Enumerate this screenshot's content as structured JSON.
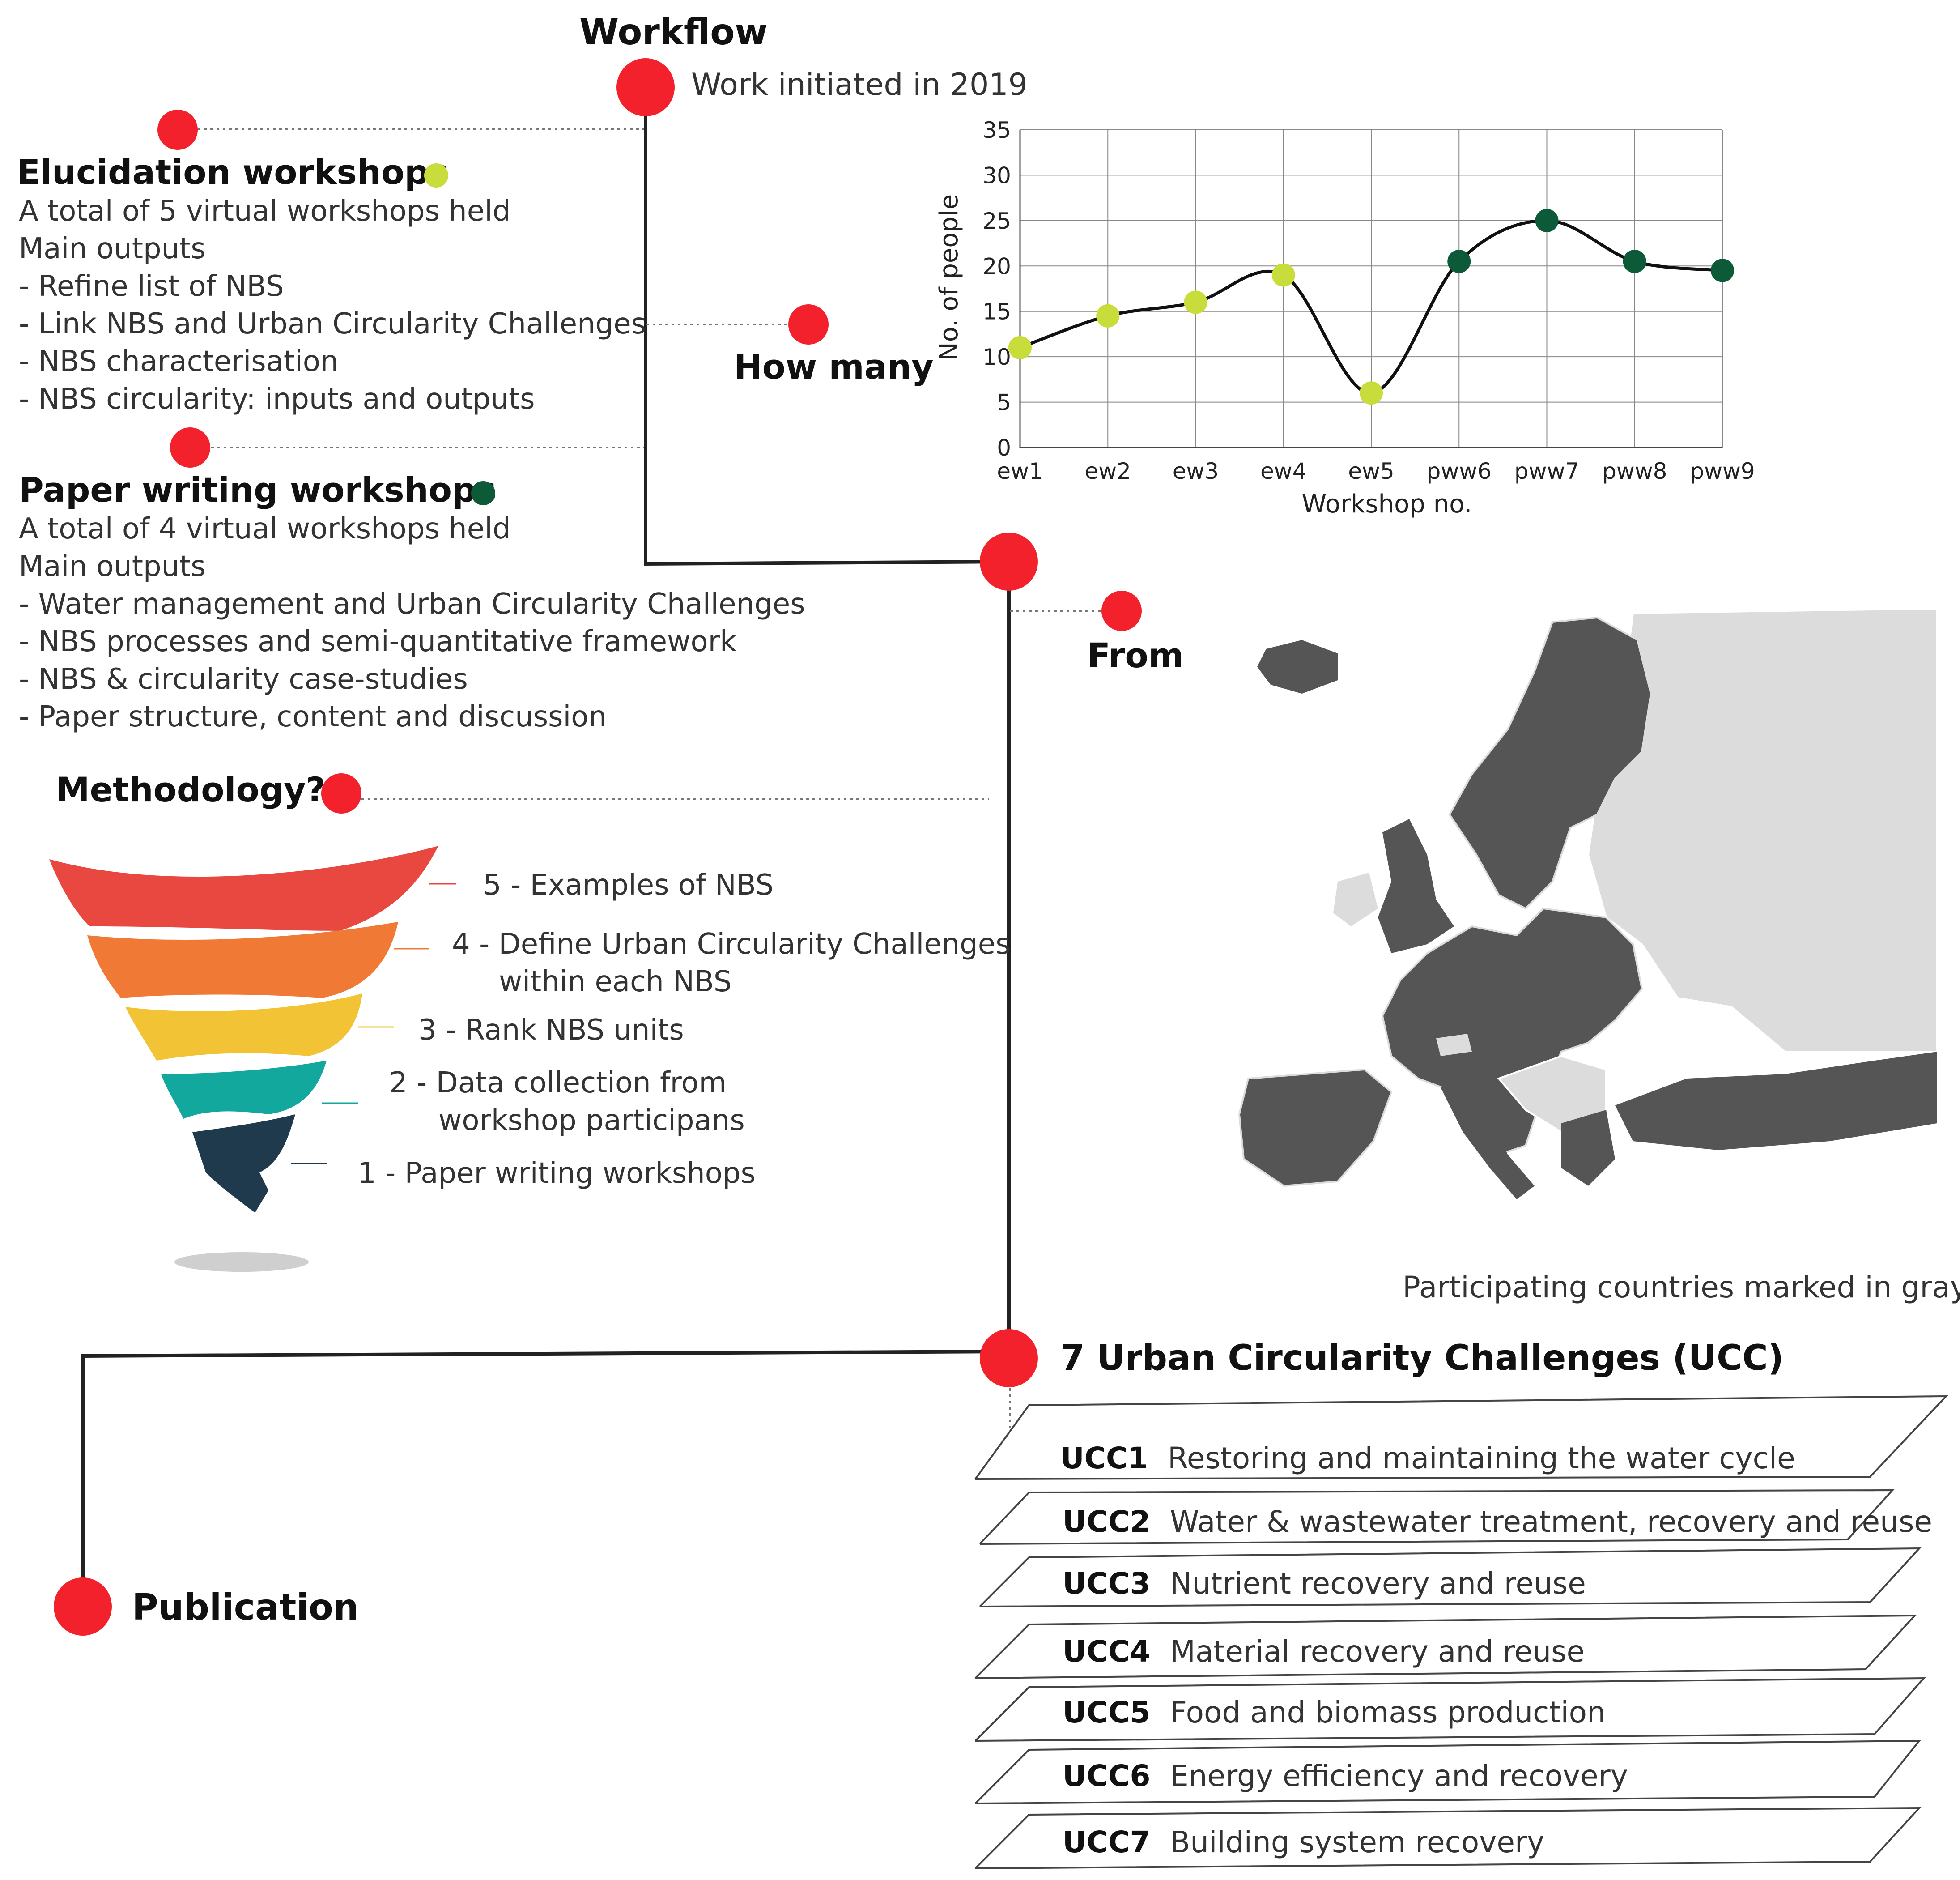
{
  "workflow": {
    "title": "Workflow",
    "start_text": "Work initiated in 2019"
  },
  "elucidation": {
    "title": "Elucidation workshops",
    "dot_color": "#c8dd3c",
    "line1": "A total of 5 virtual workshops held",
    "line2": "Main outputs",
    "outputs": [
      "- Refine list of NBS",
      "- Link NBS and Urban Circularity Challenges",
      "- NBS characterisation",
      "- NBS circularity: inputs and outputs"
    ]
  },
  "paper_writing": {
    "title": "Paper writing workshops",
    "dot_color": "#0c5a38",
    "line1": "A total of 4 virtual workshops held",
    "line2": "Main outputs",
    "outputs": [
      "- Water management and Urban Circularity Challenges",
      "- NBS processes and semi-quantitative framework",
      "- NBS & circularity case-studies",
      "- Paper structure, content and discussion"
    ]
  },
  "how_many": {
    "label": "How many"
  },
  "from": {
    "label": "From",
    "map_caption": "Participating countries marked in gray"
  },
  "methodology": {
    "title": "Methodology?",
    "steps": [
      "5 - Examples of NBS",
      "4 - Define Urban Circularity Challenges",
      "within each NBS",
      "3 - Rank NBS units",
      "2 - Data collection from",
      "workshop participans",
      "1 - Paper writing  workshops"
    ],
    "layer_colors": [
      "#e8483f",
      "#f07a35",
      "#f2c335",
      "#13a89e",
      "#1e3a4c"
    ]
  },
  "ucc": {
    "title": "7 Urban Circularity Challenges (UCC)",
    "items": [
      {
        "code": "UCC1",
        "text": "Restoring and maintaining the water cycle"
      },
      {
        "code": "UCC2",
        "text": "Water & wastewater treatment, recovery and reuse"
      },
      {
        "code": "UCC3",
        "text": "Nutrient recovery and reuse"
      },
      {
        "code": "UCC4",
        "text": "Material recovery and reuse"
      },
      {
        "code": "UCC5",
        "text": "Food and biomass production"
      },
      {
        "code": "UCC6",
        "text": "Energy efficiency and recovery"
      },
      {
        "code": "UCC7",
        "text": "Building system recovery"
      }
    ]
  },
  "publication": {
    "label": "Publication"
  },
  "colors": {
    "accent": "#f2212b",
    "map_gray": "#555555",
    "map_light": "#dcdcdc"
  },
  "chart_data": {
    "type": "line",
    "categories": [
      "ew1",
      "ew2",
      "ew3",
      "ew4",
      "ew5",
      "pww6",
      "pww7",
      "pww8",
      "pww9"
    ],
    "values": [
      11,
      14.5,
      16,
      19,
      6,
      20.5,
      25,
      20.5,
      19.5
    ],
    "point_colors": [
      "#c8dd3c",
      "#c8dd3c",
      "#c8dd3c",
      "#c8dd3c",
      "#c8dd3c",
      "#0c5a38",
      "#0c5a38",
      "#0c5a38",
      "#0c5a38"
    ],
    "xlabel": "Workshop no.",
    "ylabel": "No. of people",
    "ylim": [
      0,
      35
    ],
    "yticks": [
      "0",
      "5",
      "10",
      "15",
      "20",
      "25",
      "30",
      "35"
    ],
    "grid": true
  }
}
